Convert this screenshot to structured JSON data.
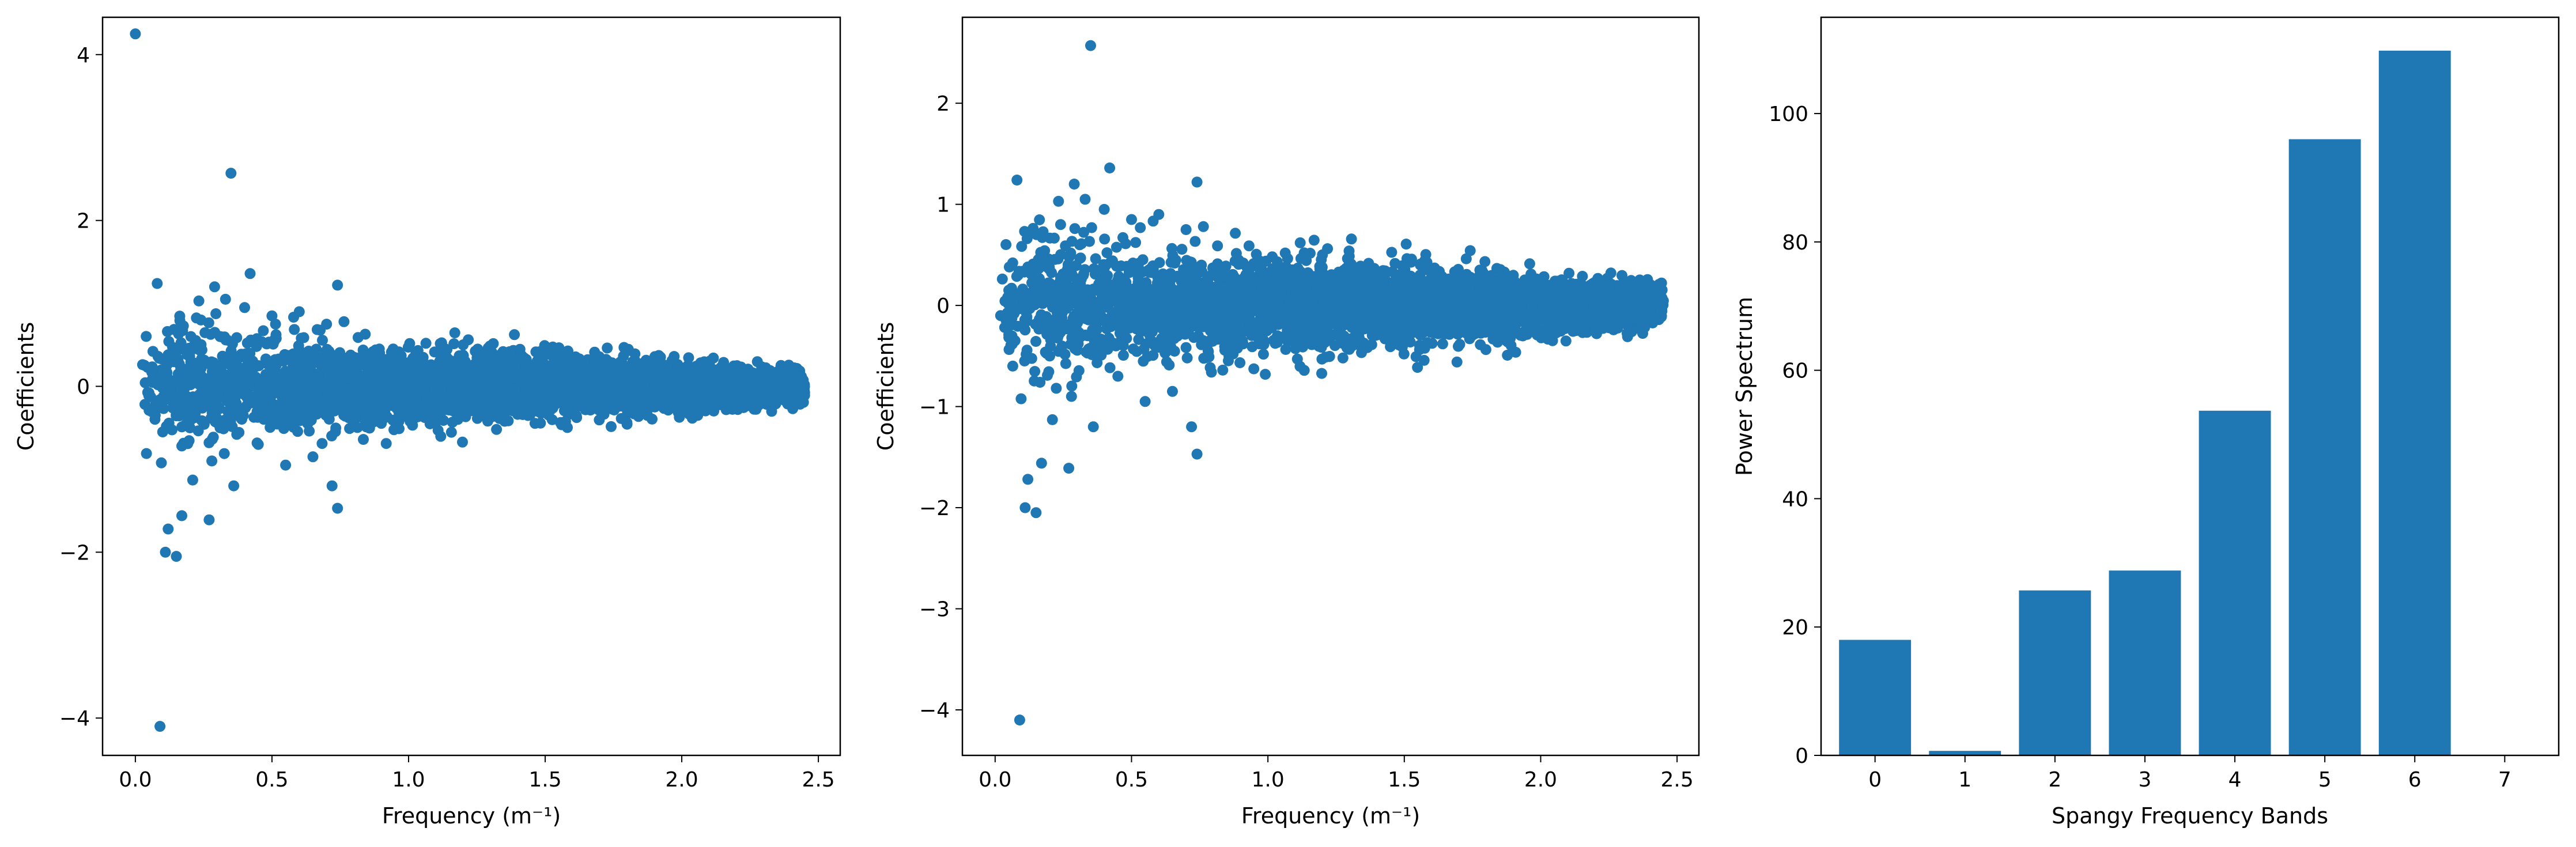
{
  "figure": {
    "background": "#ffffff",
    "point_color": "#1f77b4",
    "bar_color": "#1f77b4",
    "axis_color": "#000000"
  },
  "chart_data": [
    {
      "type": "scatter",
      "xlabel": "Frequency (m⁻¹)",
      "ylabel": "Coefficients",
      "xlim": [
        -0.12,
        2.58
      ],
      "ylim": [
        -4.45,
        4.45
      ],
      "xticks": [
        0.0,
        0.5,
        1.0,
        1.5,
        2.0,
        2.5
      ],
      "xtick_labels": [
        "0.0",
        "0.5",
        "1.0",
        "1.5",
        "2.0",
        "2.5"
      ],
      "yticks": [
        -4,
        -2,
        0,
        2,
        4
      ],
      "ytick_labels": [
        "−4",
        "−2",
        "0",
        "2",
        "4"
      ],
      "points": [
        [
          0.0,
          4.25
        ],
        [
          0.35,
          2.57
        ],
        [
          0.09,
          -4.1
        ],
        [
          0.08,
          1.24
        ],
        [
          0.42,
          1.36
        ],
        [
          0.74,
          1.22
        ],
        [
          0.11,
          -2.0
        ],
        [
          0.15,
          -2.05
        ],
        [
          0.12,
          -1.72
        ],
        [
          0.17,
          -1.56
        ],
        [
          0.21,
          -1.13
        ],
        [
          0.27,
          -1.61
        ],
        [
          0.74,
          -1.47
        ],
        [
          0.29,
          1.2
        ],
        [
          0.33,
          1.05
        ],
        [
          0.05,
          -0.08
        ],
        [
          0.12,
          0.38
        ],
        [
          0.2,
          -0.5
        ],
        [
          0.24,
          0.8
        ],
        [
          0.28,
          -0.9
        ],
        [
          0.31,
          0.6
        ],
        [
          0.36,
          -1.2
        ],
        [
          0.4,
          0.95
        ],
        [
          0.45,
          -0.7
        ],
        [
          0.5,
          0.85
        ],
        [
          0.55,
          -0.95
        ],
        [
          0.6,
          0.9
        ],
        [
          0.65,
          -0.85
        ],
        [
          0.7,
          0.75
        ],
        [
          0.72,
          -1.2
        ]
      ],
      "envelope": [
        {
          "f": 0.2,
          "a": 0.85
        },
        {
          "f": 0.5,
          "a": 0.62
        },
        {
          "f": 1.0,
          "a": 0.5
        },
        {
          "f": 1.5,
          "a": 0.45
        },
        {
          "f": 2.0,
          "a": 0.32
        },
        {
          "f": 2.45,
          "a": 0.22
        }
      ]
    },
    {
      "type": "scatter",
      "xlabel": "Frequency (m⁻¹)",
      "ylabel": "Coefficients",
      "xlim": [
        -0.12,
        2.58
      ],
      "ylim": [
        -4.45,
        2.85
      ],
      "xticks": [
        0.0,
        0.5,
        1.0,
        1.5,
        2.0,
        2.5
      ],
      "xtick_labels": [
        "0.0",
        "0.5",
        "1.0",
        "1.5",
        "2.0",
        "2.5"
      ],
      "yticks": [
        -4,
        -3,
        -2,
        -1,
        0,
        1,
        2
      ],
      "ytick_labels": [
        "−4",
        "−3",
        "−2",
        "−1",
        "0",
        "1",
        "2"
      ],
      "points": [
        [
          0.35,
          2.57
        ],
        [
          0.09,
          -4.1
        ],
        [
          0.08,
          1.24
        ],
        [
          0.42,
          1.36
        ],
        [
          0.74,
          1.22
        ],
        [
          0.11,
          -2.0
        ],
        [
          0.15,
          -2.05
        ],
        [
          0.12,
          -1.72
        ],
        [
          0.17,
          -1.56
        ],
        [
          0.21,
          -1.13
        ],
        [
          0.27,
          -1.61
        ],
        [
          0.74,
          -1.47
        ],
        [
          0.29,
          1.2
        ],
        [
          0.33,
          1.05
        ],
        [
          0.02,
          -0.1
        ],
        [
          0.05,
          0.15
        ],
        [
          0.12,
          0.38
        ],
        [
          0.2,
          -0.5
        ],
        [
          0.24,
          0.8
        ],
        [
          0.28,
          -0.9
        ],
        [
          0.31,
          0.6
        ],
        [
          0.36,
          -1.2
        ],
        [
          0.4,
          0.95
        ],
        [
          0.45,
          -0.7
        ],
        [
          0.5,
          0.85
        ],
        [
          0.55,
          -0.95
        ],
        [
          0.6,
          0.9
        ],
        [
          0.65,
          -0.85
        ],
        [
          0.7,
          0.75
        ],
        [
          0.72,
          -1.2
        ]
      ],
      "envelope": [
        {
          "f": 0.2,
          "a": 0.85
        },
        {
          "f": 0.5,
          "a": 0.62
        },
        {
          "f": 1.0,
          "a": 0.5
        },
        {
          "f": 1.5,
          "a": 0.45
        },
        {
          "f": 2.0,
          "a": 0.32
        },
        {
          "f": 2.45,
          "a": 0.22
        }
      ]
    },
    {
      "type": "bar",
      "xlabel": "Spangy Frequency Bands",
      "ylabel": "Power Spectrum",
      "categories": [
        "0",
        "1",
        "2",
        "3",
        "4",
        "5",
        "6",
        "7"
      ],
      "values": [
        18,
        0.7,
        25.7,
        28.8,
        53.7,
        96,
        109.8,
        0
      ],
      "xlim": [
        -0.6,
        7.6
      ],
      "ylim": [
        0,
        115
      ],
      "yticks": [
        0,
        20,
        40,
        60,
        80,
        100
      ],
      "ytick_labels": [
        "0",
        "20",
        "40",
        "60",
        "80",
        "100"
      ]
    }
  ]
}
